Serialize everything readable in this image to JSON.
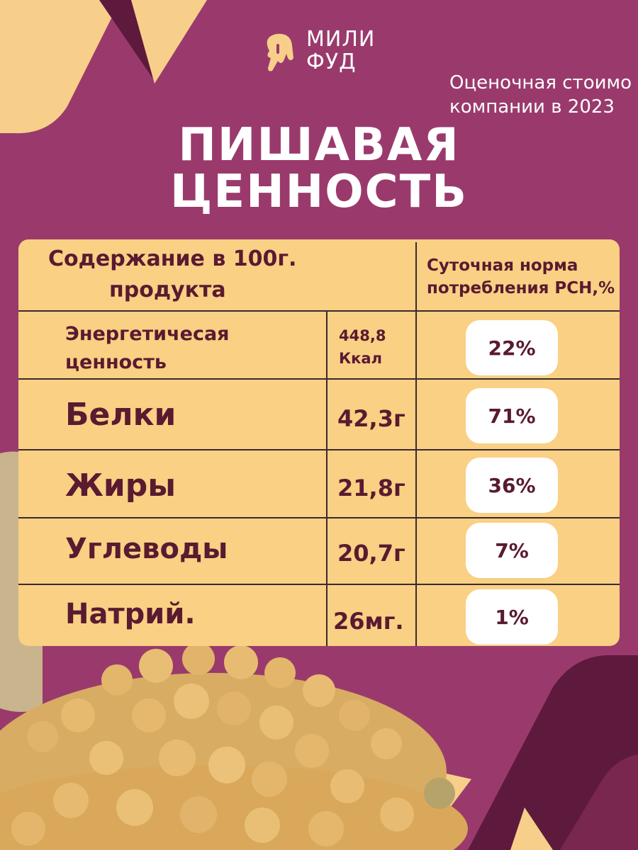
{
  "brand": {
    "line1": "МИЛИ",
    "line2": "ФУД"
  },
  "caption": {
    "line1": "Оценочная стоимо",
    "line2": "компании в 2023"
  },
  "title": {
    "line1": "ПИШАВАЯ",
    "line2": "ЦЕННОСТЬ"
  },
  "table": {
    "header_left_line1": "Содержание в 100г.",
    "header_left_line2": "продукта",
    "header_right_line1": "Суточная норма",
    "header_right_line2": "потребления РСН,%",
    "rows": [
      {
        "name_line1": "Энергетичесая",
        "name_line2": "ценность",
        "amount_line1": "448,8",
        "amount_line2": "Ккал",
        "percent": "22%"
      },
      {
        "name": "Белки",
        "amount": "42,3г",
        "percent": "71%"
      },
      {
        "name": "Жиры",
        "amount": "21,8г",
        "percent": "36%"
      },
      {
        "name": "Углеводы",
        "amount": "20,7г",
        "percent": "7%"
      },
      {
        "name": "Натрий.",
        "amount": "26мг.",
        "percent": "1%"
      }
    ]
  },
  "colors": {
    "background": "#9a3a6c",
    "table": "#f9d084",
    "text": "#5a1a30",
    "accent_dark": "#5e1a3d"
  },
  "icons": {
    "logo": "ice-cream-icon"
  }
}
